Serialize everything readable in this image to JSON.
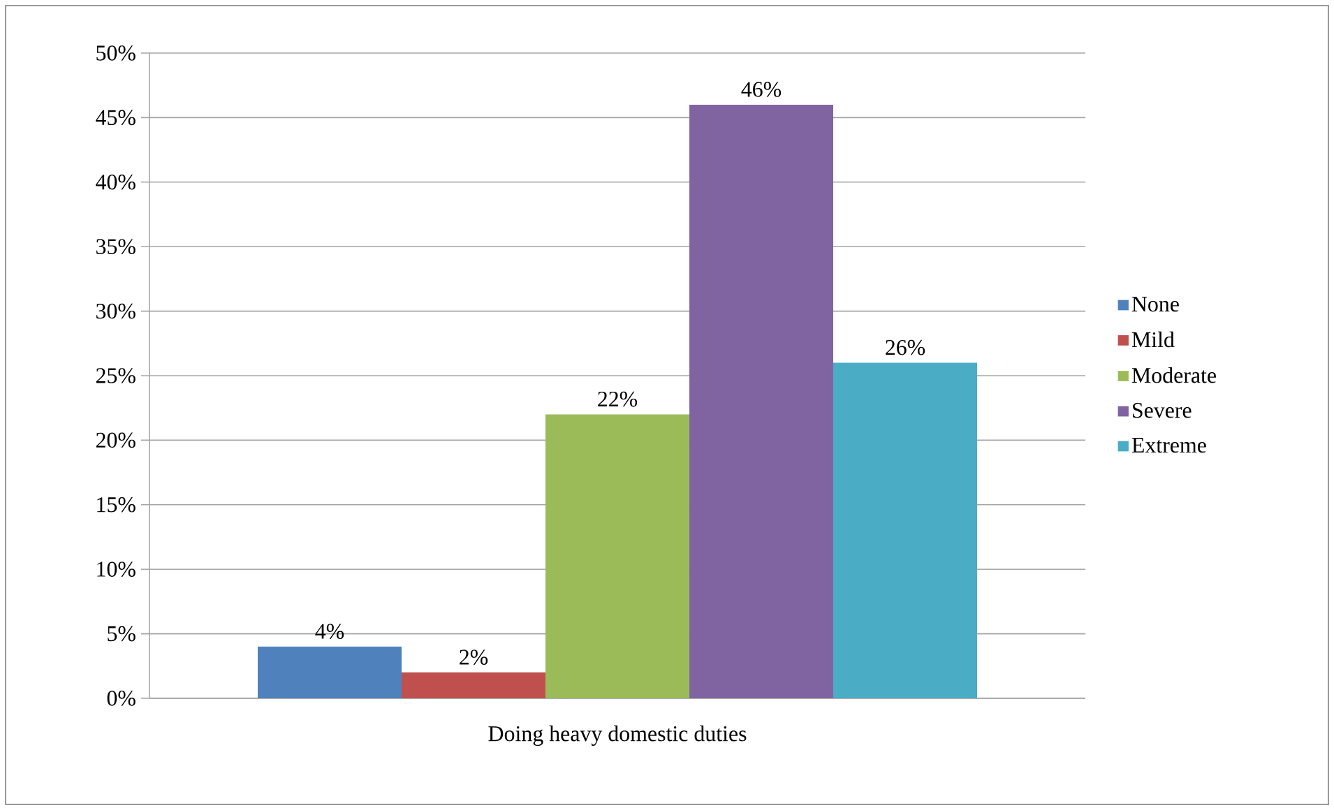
{
  "chart_data": {
    "type": "bar",
    "categories": [
      "Doing heavy domestic duties"
    ],
    "series": [
      {
        "name": "None",
        "color": "#4f81bd",
        "values": [
          4
        ],
        "value_labels": [
          "4%"
        ]
      },
      {
        "name": "Mild",
        "color": "#c0504d",
        "values": [
          2
        ],
        "value_labels": [
          "2%"
        ]
      },
      {
        "name": "Moderate",
        "color": "#9bbb59",
        "values": [
          22
        ],
        "value_labels": [
          "22%"
        ]
      },
      {
        "name": "Severe",
        "color": "#8064a2",
        "values": [
          46
        ],
        "value_labels": [
          "46%"
        ]
      },
      {
        "name": "Extreme",
        "color": "#4bacc6",
        "values": [
          26
        ],
        "value_labels": [
          "26%"
        ]
      }
    ],
    "ylim": [
      0,
      50
    ],
    "yticks": [
      {
        "value": 0,
        "label": "0%"
      },
      {
        "value": 5,
        "label": "5%"
      },
      {
        "value": 10,
        "label": "10%"
      },
      {
        "value": 15,
        "label": "15%"
      },
      {
        "value": 20,
        "label": "20%"
      },
      {
        "value": 25,
        "label": "25%"
      },
      {
        "value": 30,
        "label": "30%"
      },
      {
        "value": 35,
        "label": "35%"
      },
      {
        "value": 40,
        "label": "40%"
      },
      {
        "value": 45,
        "label": "45%"
      },
      {
        "value": 50,
        "label": "50%"
      }
    ],
    "grid": "y",
    "legend": "right"
  }
}
